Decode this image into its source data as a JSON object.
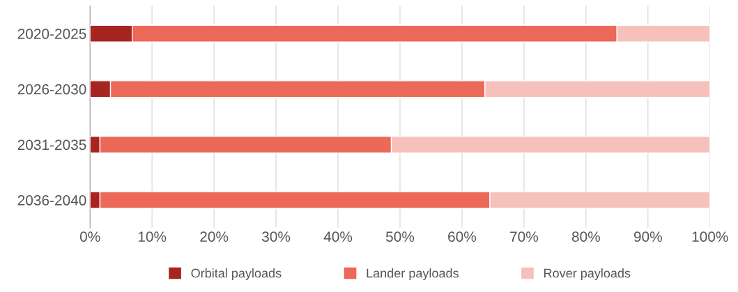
{
  "chart_data": {
    "type": "bar",
    "orientation": "horizontal",
    "stacked": true,
    "categories": [
      "2020-2025",
      "2026-2030",
      "2031-2035",
      "2036-2040"
    ],
    "series": [
      {
        "name": "Orbital payloads",
        "color": "#a82420",
        "values": [
          6.8,
          3.3,
          1.6,
          1.6
        ]
      },
      {
        "name": "Lander payloads",
        "color": "#ec6858",
        "values": [
          78.2,
          60.4,
          47.0,
          62.9
        ]
      },
      {
        "name": "Rover payloads",
        "color": "#f7c1bb",
        "values": [
          15.0,
          36.3,
          51.4,
          35.5
        ]
      }
    ],
    "xlim": [
      0,
      100
    ],
    "xticks": [
      {
        "value": 0,
        "label": "0%"
      },
      {
        "value": 10,
        "label": "10%"
      },
      {
        "value": 20,
        "label": "20%"
      },
      {
        "value": 30,
        "label": "30%"
      },
      {
        "value": 40,
        "label": "40%"
      },
      {
        "value": 50,
        "label": "50%"
      },
      {
        "value": 60,
        "label": "60%"
      },
      {
        "value": 70,
        "label": "70%"
      },
      {
        "value": 80,
        "label": "80%"
      },
      {
        "value": 90,
        "label": "90%"
      },
      {
        "value": 100,
        "label": "100%"
      }
    ],
    "grid": "x",
    "legend": "bottom"
  }
}
